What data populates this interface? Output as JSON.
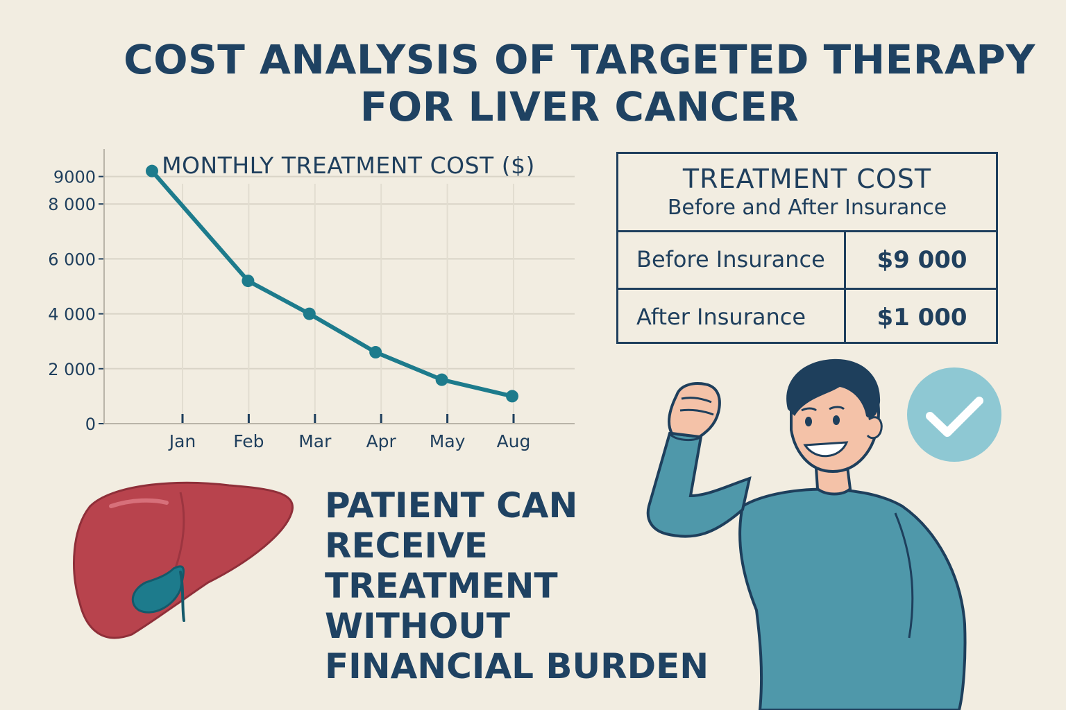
{
  "title": {
    "line1": "COST ANALYSIS OF TARGETED THERAPY",
    "line2": "FOR LIVER CANCER"
  },
  "chart_data": {
    "type": "line",
    "title": "MONTHLY TREATMENT COST ($)",
    "categories": [
      "Jan",
      "Feb",
      "Mar",
      "Apr",
      "May",
      "Aug"
    ],
    "series": [
      {
        "name": "Monthly Treatment Cost",
        "values": [
          9200,
          5200,
          4000,
          2600,
          1600,
          1000
        ]
      }
    ],
    "y_ticks": [
      {
        "value": 0,
        "label": "0"
      },
      {
        "value": 2000,
        "label": "2 000"
      },
      {
        "value": 4000,
        "label": "4 000"
      },
      {
        "value": 6000,
        "label": "6 000"
      },
      {
        "value": 8000,
        "label": "8 000"
      },
      {
        "value": 9000,
        "label": "9000"
      }
    ],
    "xlabel": "",
    "ylabel": "",
    "ylim": [
      0,
      10000
    ],
    "grid": true,
    "line_color": "#1d7b8c"
  },
  "table": {
    "heading": "TREATMENT COST",
    "subheading": "Before and After Insurance",
    "rows": [
      {
        "label": "Before Insurance",
        "value": "$9 000"
      },
      {
        "label": "After Insurance",
        "value": "$1 000"
      }
    ]
  },
  "message": {
    "lines": [
      "PATIENT CAN",
      "RECEIVE",
      "TREATMENT WITHOUT",
      "FINANCIAL BURDEN"
    ]
  },
  "colors": {
    "background": "#f2ede1",
    "navy": "#1f4262",
    "teal": "#1d7b8c",
    "liver": "#b8434d",
    "shirt": "#4f98aa",
    "check_circle": "#8ec8d3"
  },
  "illustrations": {
    "liver": "liver-icon",
    "person": "person-flexing-illustration",
    "check": "checkmark-icon"
  }
}
